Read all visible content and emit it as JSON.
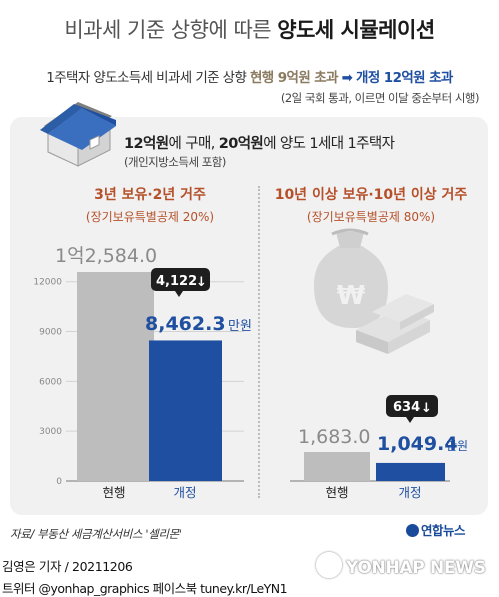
{
  "header": {
    "title_prefix": "비과세 기준 상향에 따른 ",
    "title_bold": "양도세 시뮬레이션",
    "subtitle_prefix": "1주택자 양도소득세 비과세 기준 상향 ",
    "subtitle_current": "현행 9억원 초과",
    "subtitle_arrow": "➡",
    "subtitle_new": "개정 12억원 초과",
    "note": "(2일 국회 통과, 이르면 이달 중순부터 시행)"
  },
  "condition": {
    "part1": "12억원",
    "part2": "에 구매, ",
    "part3": "20억원",
    "part4": "에 양도 1세대 1주택자",
    "note": "(개인지방소득세 포함)"
  },
  "colors": {
    "title_orange": "#b5512a",
    "bar_current": "#bdbdbd",
    "bar_new": "#1f4fa0",
    "badge": "#1e1e1e"
  },
  "chart_data": [
    {
      "type": "bar",
      "title": "3년 보유·2년 거주",
      "subtitle": "(장기보유특별공제 20%)",
      "unit": "만원",
      "categories": [
        "현행",
        "개정"
      ],
      "values": [
        12584.0,
        8462.3
      ],
      "value_labels": [
        "1억2,584.0",
        "8,462.3"
      ],
      "ylim": [
        0,
        14000
      ],
      "yticks": [
        0,
        3000,
        6000,
        9000,
        12000
      ],
      "ytick_labels": [
        "0",
        "3000",
        "6000",
        "9000",
        "12000"
      ],
      "diff_label": "4,122",
      "grid": true
    },
    {
      "type": "bar",
      "title": "10년 이상 보유·10년 이상 거주",
      "subtitle": "(장기보유특별공제 80%)",
      "unit": "만원",
      "categories": [
        "현행",
        "개정"
      ],
      "values": [
        1683.0,
        1049.4
      ],
      "value_labels": [
        "1,683.0",
        "1,049.4"
      ],
      "diff_label": "634"
    }
  ],
  "footer": {
    "source": "자료/ 부동산 세금계산서비스 '셀리몬'",
    "logo": "연합뉴스",
    "reporter": "김영은 기자 / 20211206",
    "social": "트위터 @yonhap_graphics  페이스북 tuney.kr/LeYN1",
    "watermark": "YONHAP NEWS"
  }
}
